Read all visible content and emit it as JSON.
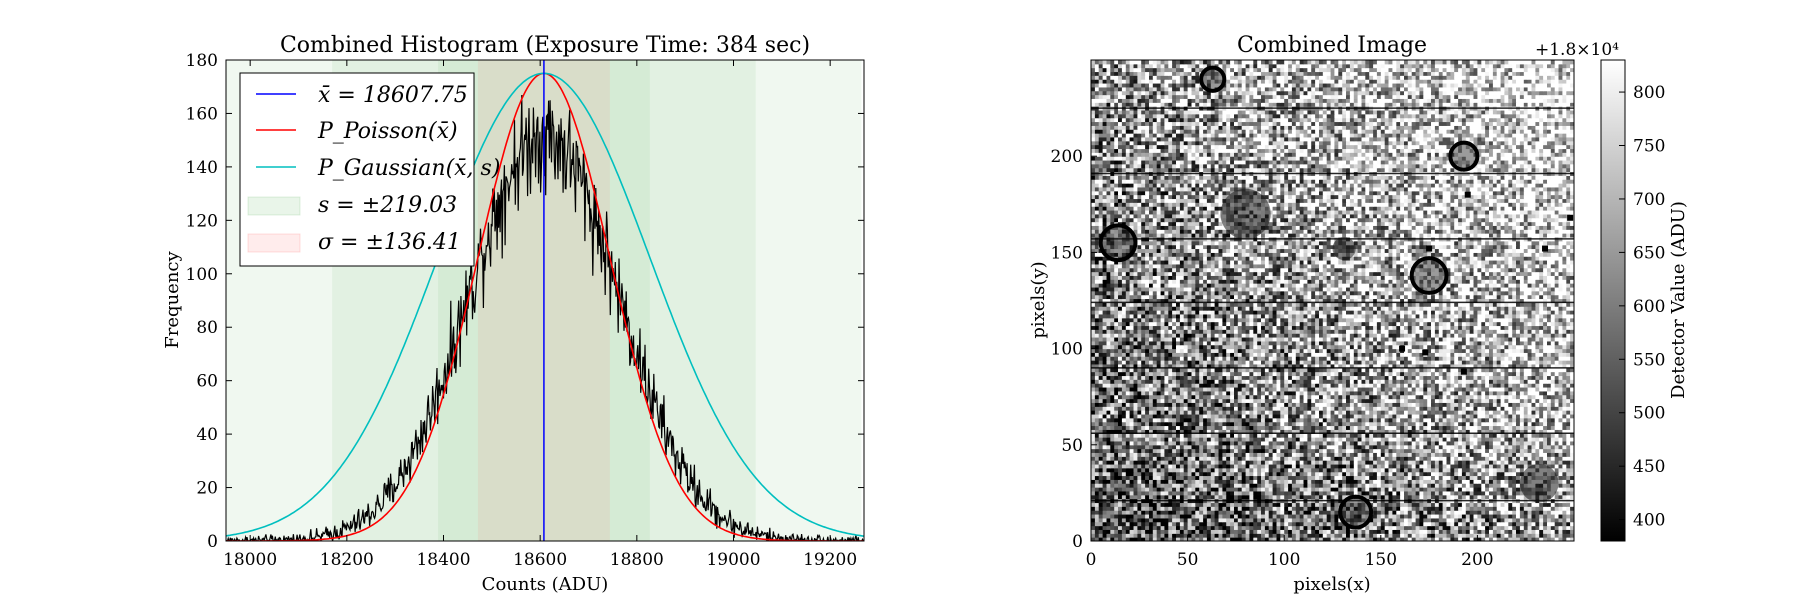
{
  "chart_data": [
    {
      "type": "histogram",
      "title": "Combined Histogram (Exposure Time: 384 sec)",
      "xlabel": "Counts (ADU)",
      "ylabel": "Frequency",
      "xlim": [
        17950,
        19270
      ],
      "ylim": [
        0,
        180
      ],
      "xticks": [
        "18000",
        "18200",
        "18400",
        "18600",
        "18800",
        "19000",
        "19200"
      ],
      "yticks": [
        "0",
        "20",
        "40",
        "60",
        "80",
        "100",
        "120",
        "140",
        "160",
        "180"
      ],
      "mean": 18607.75,
      "s": 219.03,
      "sigma": 136.41,
      "peak": 175,
      "legend": {
        "position": "upper-left",
        "entries": [
          {
            "label": "x̄ = 18607.75",
            "color": "#0000ff",
            "kind": "line"
          },
          {
            "label": "P_Poisson(x̄)",
            "color": "#ff0000",
            "kind": "line"
          },
          {
            "label": "P_Gaussian(x̄, s)",
            "color": "#00bfbf",
            "kind": "line"
          },
          {
            "label": "s = ±219.03",
            "color": "#2ca02c",
            "kind": "patch"
          },
          {
            "label": "σ = ±136.41",
            "color": "#ff6060",
            "kind": "patch"
          }
        ]
      },
      "series": [
        {
          "name": "x̄ = 18607.75",
          "type": "vline",
          "x": 18607.75,
          "color": "#0000ff"
        },
        {
          "name": "P_Poisson(x̄)",
          "type": "gaussian",
          "mean": 18607.75,
          "std": 136.41,
          "peak": 175,
          "color": "#ff0000"
        },
        {
          "name": "P_Gaussian(x̄, s)",
          "type": "gaussian",
          "mean": 18607.75,
          "std": 219.03,
          "peak": 175,
          "color": "#00bfbf"
        },
        {
          "type": "histogram",
          "distribution_mean": 18607.75,
          "distribution_std": 155,
          "peak": 152,
          "color": "#000000"
        }
      ],
      "bands": [
        {
          "center": 18607.75,
          "halfwidth": 219.03,
          "multiples": [
            1,
            2,
            3
          ],
          "color": "#2ca02c"
        },
        {
          "center": 18607.75,
          "halfwidth": 136.41,
          "multiples": [
            1
          ],
          "color": "#ff6060"
        }
      ],
      "grid": false
    },
    {
      "type": "heatmap",
      "title": "Combined Image",
      "xlabel": "pixels(x)",
      "ylabel": "pixels(y)",
      "xlim": [
        0,
        250
      ],
      "ylim": [
        0,
        250
      ],
      "xticks": [
        "0",
        "50",
        "100",
        "150",
        "200"
      ],
      "yticks": [
        "0",
        "50",
        "100",
        "150",
        "200"
      ],
      "colormap": "gray",
      "colorbar": {
        "label": "Detector Value (ADU)",
        "offset_label": "+1.8×10⁴",
        "range": [
          380,
          830
        ],
        "ticks": [
          "400",
          "450",
          "500",
          "550",
          "600",
          "650",
          "700",
          "750",
          "800"
        ]
      },
      "dark_row_lines_y": [
        21,
        56,
        90,
        124,
        157,
        191,
        225
      ],
      "features": [
        {
          "kind": "ring",
          "x": 14,
          "y": 155,
          "r": 9
        },
        {
          "kind": "ring",
          "x": 175,
          "y": 138,
          "r": 9
        },
        {
          "kind": "ring",
          "x": 193,
          "y": 200,
          "r": 7
        },
        {
          "kind": "ring",
          "x": 63,
          "y": 240,
          "r": 6
        },
        {
          "kind": "ring",
          "x": 137,
          "y": 15,
          "r": 8
        },
        {
          "kind": "blob",
          "x": 131,
          "y": 152,
          "r": 6
        },
        {
          "kind": "blob",
          "x": 232,
          "y": 30,
          "r": 10
        },
        {
          "kind": "blob",
          "x": 80,
          "y": 170,
          "r": 13
        },
        {
          "kind": "dot",
          "x": 175,
          "y": 152
        },
        {
          "kind": "dot",
          "x": 195,
          "y": 180
        },
        {
          "kind": "dot",
          "x": 235,
          "y": 152
        },
        {
          "kind": "dot",
          "x": 193,
          "y": 88
        },
        {
          "kind": "dot",
          "x": 173,
          "y": 98
        },
        {
          "kind": "dot",
          "x": 161,
          "y": 100
        },
        {
          "kind": "dot",
          "x": 248,
          "y": 168
        }
      ]
    }
  ]
}
